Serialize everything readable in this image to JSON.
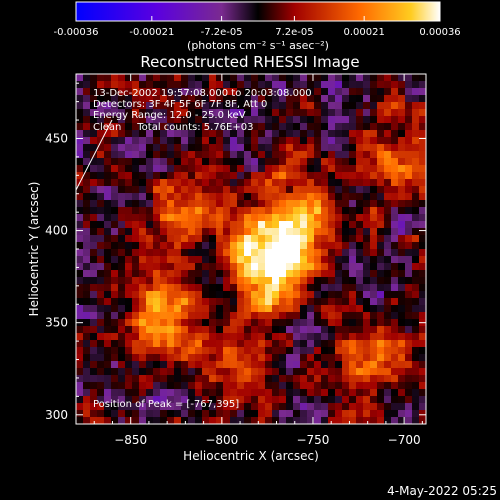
{
  "chart_data": {
    "type": "heatmap",
    "title": "Reconstructed RHESSI Image",
    "xlabel": "Heliocentric X (arcsec)",
    "ylabel": "Heliocentric Y (arcsec)",
    "xlim": [
      -880,
      -688
    ],
    "ylim": [
      295,
      485
    ],
    "x_ticks": [
      -850,
      -800,
      -750,
      -700
    ],
    "y_ticks": [
      300,
      350,
      400,
      450
    ],
    "colorbar": {
      "unit": "(photons cm⁻² s⁻¹ asec⁻²)",
      "range": [
        -0.00036,
        0.00036
      ],
      "tick_values": [
        -0.00036,
        -0.00021,
        -7.2e-05,
        7.2e-05,
        0.00021,
        0.00036
      ],
      "tick_labels": [
        "-0.00036",
        "-0.00021",
        "-7.2e-05",
        "7.2e-05",
        "0.00021",
        "0.00036"
      ]
    },
    "annotations": [
      "13-Dec-2002 19:57:08.000 to 20:03:08.000",
      "Detectors: 3F 4F 5F 6F 7F 8F, Att 0",
      "Energy Range: 12.0 - 25.0 keV",
      "Clean     Total counts: 5.76E+03"
    ],
    "peak_label": "Position of Peak = [-767,395]",
    "peak": [
      -767,
      395
    ],
    "sources": [
      {
        "x": -775,
        "y": 380,
        "amplitude": 0.00036
      },
      {
        "x": -835,
        "y": 355,
        "amplitude": 0.00027
      },
      {
        "x": -760,
        "y": 403,
        "amplitude": 0.0003
      },
      {
        "x": -820,
        "y": 410,
        "amplitude": 0.00018
      },
      {
        "x": -720,
        "y": 330,
        "amplitude": 0.00018
      },
      {
        "x": -700,
        "y": 440,
        "amplitude": 0.00015
      },
      {
        "x": -790,
        "y": 330,
        "amplitude": 0.00015
      }
    ]
  },
  "footer": {
    "timestamp": "4-May-2022 05:25"
  }
}
